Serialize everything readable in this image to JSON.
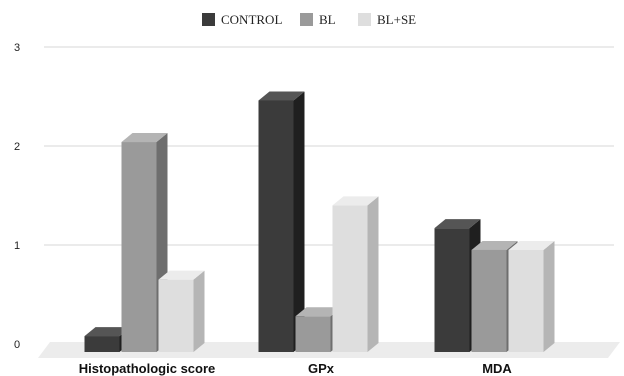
{
  "chart_data": {
    "type": "bar",
    "title": "",
    "xlabel": "",
    "ylabel": "",
    "categories": [
      "Histopathologic score",
      "GPx",
      "MDA"
    ],
    "series": [
      {
        "name": "CONTROL",
        "values": [
          0.08,
          2.46,
          1.17
        ]
      },
      {
        "name": "BL",
        "values": [
          2.04,
          0.28,
          0.95
        ]
      },
      {
        "name": "BL+SE",
        "values": [
          0.65,
          1.4,
          0.95
        ]
      }
    ],
    "ylim": [
      0,
      3
    ],
    "yticks": [
      "0",
      "1",
      "2",
      "3"
    ],
    "grid": true,
    "legend_position": "top",
    "style": "3d-bar",
    "colors": {
      "series": [
        "#3b3b3b",
        "#9a9a9a",
        "#dedede"
      ],
      "series_dark": [
        "#1f1f1f",
        "#6e6e6e",
        "#b5b5b5"
      ],
      "series_light": [
        "#555555",
        "#b4b4b4",
        "#ececec"
      ],
      "grid": "#d7d7d7",
      "floor": "#ececec"
    }
  }
}
